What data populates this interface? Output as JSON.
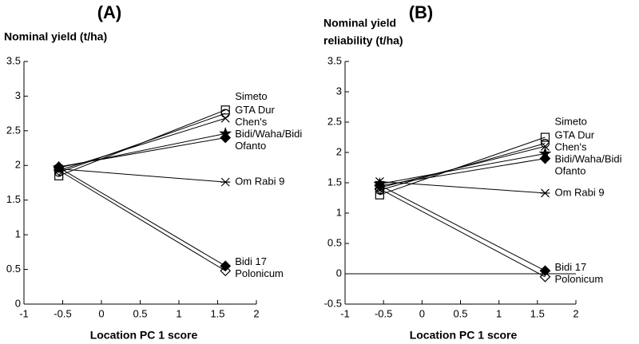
{
  "chart_data": [
    {
      "type": "line",
      "title": "(A)",
      "ylabel": [
        "Nominal yield (t/ha)"
      ],
      "xlabel": "Location PC 1 score",
      "x": [
        -0.55,
        1.6
      ],
      "xlim": [
        -1,
        2
      ],
      "xticks": [
        -1,
        -0.5,
        0,
        0.5,
        1,
        1.5,
        2
      ],
      "ylim": [
        0,
        3.5
      ],
      "yticks": [
        0,
        0.5,
        1,
        1.5,
        2,
        2.5,
        3,
        3.5
      ],
      "series": [
        {
          "name": "Simeto",
          "color": "#000000",
          "marker": "square-open",
          "values": [
            1.85,
            2.8
          ]
        },
        {
          "name": "GTA Dur",
          "color": "#000000",
          "marker": "circle-open",
          "values": [
            1.9,
            2.75
          ]
        },
        {
          "name": "Chen's",
          "color": "#000000",
          "marker": "x",
          "values": [
            1.93,
            2.68
          ]
        },
        {
          "name": "Bidi/Waha/Bidi",
          "color": "#000000",
          "marker": "star",
          "values": [
            1.97,
            2.46
          ]
        },
        {
          "name": "Ofanto",
          "color": "#000000",
          "marker": "diamond-filled",
          "values": [
            1.98,
            2.4
          ]
        },
        {
          "name": "Om Rabi 9",
          "color": "#000000",
          "marker": "asterisk",
          "values": [
            1.95,
            1.76
          ]
        },
        {
          "name": "Bidi 17",
          "color": "#000000",
          "marker": "diamond-filled",
          "values": [
            1.97,
            0.55
          ]
        },
        {
          "name": "Polonicum",
          "color": "#000000",
          "marker": "diamond-open",
          "values": [
            1.93,
            0.48
          ]
        }
      ]
    },
    {
      "type": "line",
      "title": "(B)",
      "ylabel": [
        "Nominal yield",
        "reliability (t/ha)"
      ],
      "xlabel": "Location PC 1 score",
      "x": [
        -0.55,
        1.6
      ],
      "xlim": [
        -1,
        2
      ],
      "xticks": [
        -1,
        -0.5,
        0,
        0.5,
        1,
        1.5,
        2
      ],
      "ylim": [
        -0.5,
        3.5
      ],
      "yticks": [
        -0.5,
        0,
        0.5,
        1,
        1.5,
        2,
        2.5,
        3,
        3.5
      ],
      "reference_line": 0,
      "series": [
        {
          "name": "Simeto",
          "color": "#000000",
          "marker": "square-open",
          "values": [
            1.3,
            2.25
          ]
        },
        {
          "name": "GTA Dur",
          "color": "#000000",
          "marker": "circle-open",
          "values": [
            1.38,
            2.15
          ]
        },
        {
          "name": "Chen's",
          "color": "#000000",
          "marker": "x",
          "values": [
            1.42,
            2.1
          ]
        },
        {
          "name": "Bidi/Waha/Bidi",
          "color": "#000000",
          "marker": "star",
          "values": [
            1.48,
            1.98
          ]
        },
        {
          "name": "Ofanto",
          "color": "#000000",
          "marker": "diamond-filled",
          "values": [
            1.45,
            1.9
          ]
        },
        {
          "name": "Om Rabi 9",
          "color": "#000000",
          "marker": "asterisk",
          "values": [
            1.52,
            1.33
          ]
        },
        {
          "name": "Bidi 17",
          "color": "#000000",
          "marker": "diamond-filled",
          "values": [
            1.46,
            0.05
          ]
        },
        {
          "name": "Polonicum",
          "color": "#000000",
          "marker": "diamond-open",
          "values": [
            1.4,
            -0.05
          ]
        }
      ]
    }
  ]
}
